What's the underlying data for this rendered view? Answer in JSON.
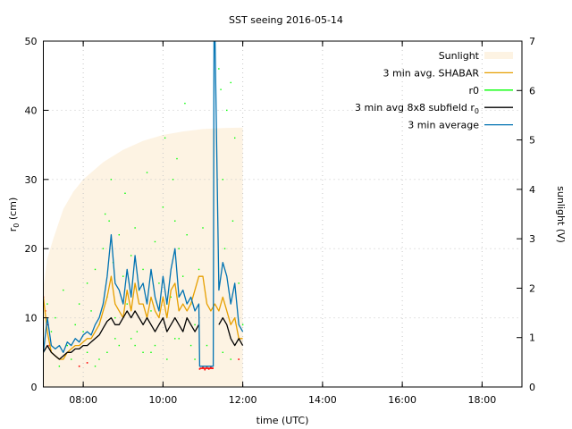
{
  "chart_data": {
    "type": "line",
    "title": "SST seeing 2016-05-14",
    "xlabel": "time (UTC)",
    "ylabel": "r0 (cm)",
    "ylabel_main": "r",
    "ylabel_sub": "0",
    "ylabel_rest": " (cm)",
    "y2label": "sunlight (V)",
    "xlim": [
      7,
      19
    ],
    "ylim": [
      0,
      50
    ],
    "y2lim": [
      0,
      7
    ],
    "grid": true,
    "legend_position": "top-right",
    "x_ticks": [
      {
        "value": 8,
        "label": "08:00"
      },
      {
        "value": 10,
        "label": "10:00"
      },
      {
        "value": 12,
        "label": "12:00"
      },
      {
        "value": 14,
        "label": "14:00"
      },
      {
        "value": 16,
        "label": "16:00"
      },
      {
        "value": 18,
        "label": "18:00"
      }
    ],
    "y_ticks": [
      {
        "value": 0,
        "label": "0"
      },
      {
        "value": 10,
        "label": "10"
      },
      {
        "value": 20,
        "label": "20"
      },
      {
        "value": 30,
        "label": "30"
      },
      {
        "value": 40,
        "label": "40"
      },
      {
        "value": 50,
        "label": "50"
      }
    ],
    "y2_ticks": [
      {
        "value": 0,
        "label": "0"
      },
      {
        "value": 1,
        "label": "1"
      },
      {
        "value": 2,
        "label": "2"
      },
      {
        "value": 3,
        "label": "3"
      },
      {
        "value": 4,
        "label": "4"
      },
      {
        "value": 5,
        "label": "5"
      },
      {
        "value": 6,
        "label": "6"
      },
      {
        "value": 7,
        "label": "7"
      }
    ],
    "legend": [
      {
        "label": "Sunlight",
        "color": "#fdf3e3",
        "kind": "fill"
      },
      {
        "label": "3 min avg. SHABAR",
        "color": "#e69f00",
        "kind": "line"
      },
      {
        "label": "r0",
        "color": "#00ff00",
        "kind": "line"
      },
      {
        "label": "3 min avg 8x8 subfield r",
        "sub": "0",
        "color": "#000000",
        "kind": "line"
      },
      {
        "label": "3 min average",
        "color": "#0072b2",
        "kind": "line"
      }
    ],
    "sunlight": {
      "axis": "y2",
      "color": "#fdf3e3",
      "x": [
        7.0,
        7.1,
        7.25,
        7.5,
        7.75,
        8.0,
        8.5,
        9.0,
        9.5,
        10.0,
        10.5,
        11.0,
        11.5,
        12.0
      ],
      "y": [
        2.0,
        2.6,
        3.0,
        3.6,
        3.95,
        4.2,
        4.55,
        4.8,
        4.98,
        5.1,
        5.17,
        5.22,
        5.24,
        5.25
      ]
    },
    "series": [
      {
        "name": "3 min avg. SHABAR",
        "color": "#e69f00",
        "x": [
          7.0,
          7.1,
          7.2,
          7.3,
          7.4,
          7.5,
          7.6,
          7.7,
          7.8,
          7.9,
          8.0,
          8.1,
          8.2,
          8.3,
          8.4,
          8.5,
          8.6,
          8.7,
          8.8,
          8.9,
          9.0,
          9.1,
          9.2,
          9.3,
          9.4,
          9.5,
          9.6,
          9.7,
          9.8,
          9.9,
          10.0,
          10.1,
          10.2,
          10.3,
          10.4,
          10.5,
          10.6,
          10.7,
          10.8,
          10.9,
          11.0,
          11.1,
          11.2,
          11.3,
          11.4,
          11.5,
          11.6,
          11.7,
          11.8,
          11.9,
          12.0
        ],
        "y": [
          13,
          8,
          5,
          4.5,
          4,
          4,
          5,
          5.5,
          6,
          6,
          6.5,
          7,
          7,
          8,
          9,
          11,
          13,
          16,
          12,
          11,
          10,
          14,
          11,
          15,
          12,
          12,
          10,
          13,
          11,
          10,
          13,
          10,
          14,
          15,
          11,
          12,
          11,
          12,
          14,
          16,
          16,
          12,
          11,
          12,
          11,
          13,
          11,
          9,
          10,
          7,
          7
        ]
      },
      {
        "name": "3 min avg 8x8 subfield r0",
        "color": "#000000",
        "x": [
          7.0,
          7.1,
          7.2,
          7.3,
          7.4,
          7.5,
          7.6,
          7.7,
          7.8,
          7.9,
          8.0,
          8.1,
          8.2,
          8.3,
          8.4,
          8.5,
          8.6,
          8.7,
          8.8,
          8.9,
          9.0,
          9.1,
          9.2,
          9.3,
          9.4,
          9.5,
          9.6,
          9.7,
          9.8,
          9.9,
          10.0,
          10.1,
          10.2,
          10.3,
          10.4,
          10.5,
          10.6,
          10.7,
          10.8,
          10.9,
          11.0,
          11.1,
          11.2,
          11.3,
          11.4,
          11.5,
          11.6,
          11.7,
          11.8,
          11.9,
          12.0
        ],
        "y": [
          5,
          6,
          5,
          4.5,
          4,
          4.5,
          5,
          5,
          5.5,
          5.5,
          6,
          6,
          6.5,
          7,
          7.5,
          8.5,
          9.5,
          10,
          9,
          9,
          10,
          11,
          10,
          11,
          10,
          9,
          10,
          9,
          8,
          9,
          10,
          8,
          9,
          10,
          9,
          8,
          10,
          9,
          8,
          9,
          null,
          null,
          null,
          null,
          9,
          10,
          9,
          7,
          6,
          7,
          6
        ]
      },
      {
        "name": "3 min average",
        "color": "#0072b2",
        "x": [
          7.0,
          7.1,
          7.2,
          7.3,
          7.4,
          7.5,
          7.6,
          7.7,
          7.8,
          7.9,
          8.0,
          8.1,
          8.2,
          8.3,
          8.4,
          8.5,
          8.6,
          8.7,
          8.8,
          8.9,
          9.0,
          9.1,
          9.2,
          9.3,
          9.4,
          9.5,
          9.6,
          9.7,
          9.8,
          9.9,
          10.0,
          10.1,
          10.2,
          10.3,
          10.4,
          10.5,
          10.6,
          10.7,
          10.8,
          10.9,
          10.92,
          11.0,
          11.1,
          11.2,
          11.26,
          11.28,
          11.3,
          11.4,
          11.5,
          11.6,
          11.7,
          11.8,
          11.9,
          12.0
        ],
        "y": [
          5,
          10,
          6,
          5.5,
          6,
          5,
          6.5,
          6,
          7,
          6.5,
          7.5,
          8,
          7.5,
          9,
          10,
          12,
          16,
          22,
          15,
          14,
          12,
          17,
          13,
          19,
          14,
          15,
          12,
          17,
          13,
          11,
          16,
          12,
          17,
          20,
          13,
          14,
          12,
          13,
          11,
          12,
          3,
          3,
          3,
          3,
          3,
          52,
          52,
          14,
          18,
          16,
          12,
          15,
          9,
          8
        ]
      }
    ],
    "r0_points": {
      "name": "r0",
      "color": "#00ff00",
      "x": [
        7.1,
        7.2,
        7.3,
        7.5,
        7.6,
        7.8,
        7.9,
        8.0,
        8.1,
        8.2,
        8.3,
        8.4,
        8.5,
        8.55,
        8.6,
        8.65,
        8.7,
        8.75,
        8.8,
        8.9,
        9.0,
        9.05,
        9.1,
        9.2,
        9.3,
        9.35,
        9.4,
        9.5,
        9.6,
        9.7,
        9.8,
        9.9,
        10.0,
        10.05,
        10.1,
        10.2,
        10.25,
        10.3,
        10.35,
        10.4,
        10.5,
        10.55,
        10.6,
        10.7,
        10.8,
        10.9,
        11.0,
        11.1,
        11.4,
        11.45,
        11.5,
        11.55,
        11.6,
        11.7,
        11.75,
        11.8,
        11.9,
        12.0,
        8.3,
        8.6,
        8.9,
        9.2,
        9.5,
        9.8,
        10.1,
        10.4,
        10.7,
        11.5,
        7.4,
        7.7,
        8.1,
        8.4,
        8.8,
        9.3,
        9.7,
        10.3,
        10.8,
        11.7
      ],
      "y": [
        12,
        8,
        10,
        14,
        6,
        9,
        12,
        8,
        15,
        11,
        17,
        9,
        20,
        25,
        13,
        24,
        30,
        18,
        10,
        22,
        16,
        28,
        12,
        19,
        23,
        8,
        14,
        17,
        31,
        11,
        21,
        15,
        26,
        36,
        12,
        13,
        30,
        24,
        33,
        20,
        16,
        41,
        22,
        12,
        9,
        17,
        23,
        6,
        46,
        43,
        30,
        20,
        40,
        44,
        24,
        36,
        15,
        9,
        3,
        5,
        6,
        7,
        5,
        6,
        4,
        7,
        6,
        5,
        3,
        4,
        5,
        4,
        7,
        6,
        5,
        7,
        4,
        4
      ]
    },
    "red_points": {
      "color": "#ff0000",
      "x": [
        7.0,
        7.05,
        7.1,
        7.15,
        10.92,
        11.0,
        11.05,
        11.1,
        11.15,
        11.2,
        11.25,
        7.9,
        8.1,
        11.9
      ],
      "y": [
        13,
        11,
        9,
        6,
        2.6,
        2.8,
        2.5,
        2.9,
        2.6,
        2.8,
        2.7,
        3,
        3.5,
        4
      ]
    }
  }
}
